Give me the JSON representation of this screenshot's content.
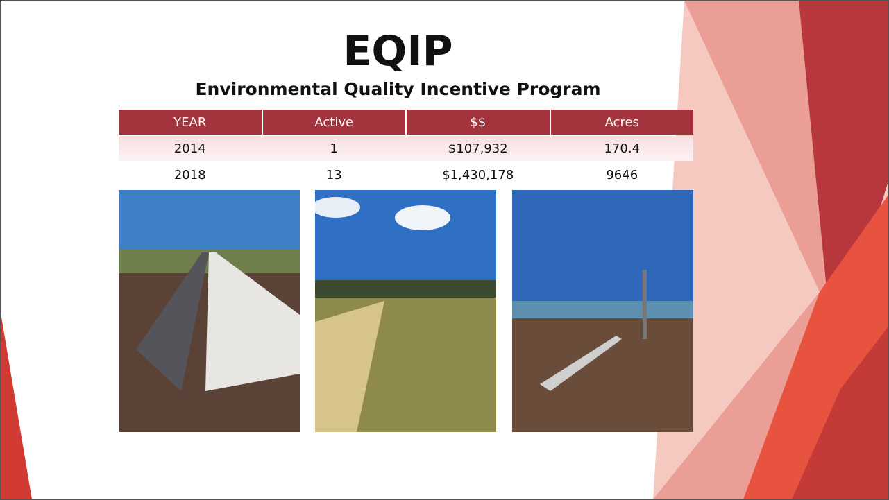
{
  "header": {
    "title": "EQIP",
    "subtitle": "Environmental Quality Incentive Program"
  },
  "table": {
    "columns": [
      "YEAR",
      "Active",
      "$$",
      "Acres"
    ],
    "rows": [
      [
        "2014",
        "1",
        "$107,932",
        "170.4"
      ],
      [
        "2018",
        "13",
        "$1,430,178",
        "9646"
      ]
    ]
  }
}
